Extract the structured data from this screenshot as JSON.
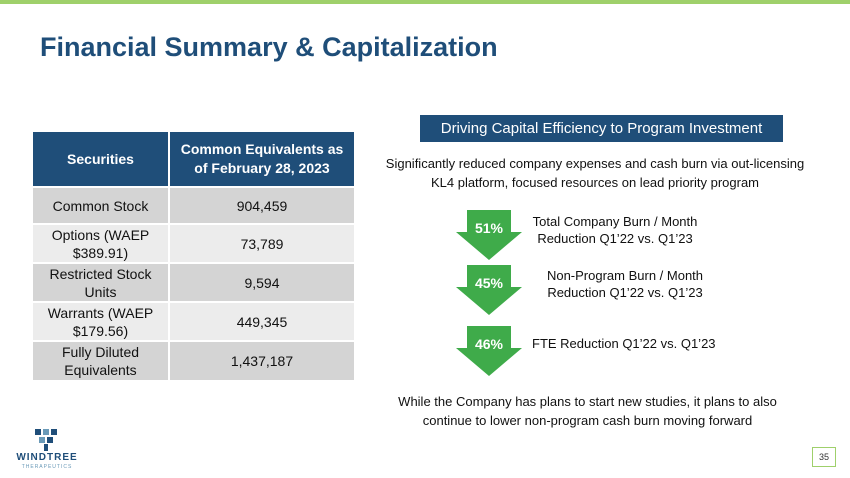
{
  "slide": {
    "title": "Financial Summary & Capitalization",
    "page_number": "35",
    "accent_color": "#9fd06b",
    "primary_color": "#1f4e79",
    "arrow_color": "#3fab4a"
  },
  "table": {
    "headers": [
      "Securities",
      "Common Equivalents as of February 28, 2023"
    ],
    "rows": [
      {
        "security": "Common Stock",
        "value": "904,459"
      },
      {
        "security": "Options (WAEP $389.91)",
        "value": "73,789"
      },
      {
        "security": "Restricted Stock Units",
        "value": "9,594"
      },
      {
        "security": "Warrants (WAEP $179.56)",
        "value": "449,345"
      },
      {
        "security": "Fully Diluted Equivalents",
        "value": "1,437,187"
      }
    ]
  },
  "right_panel": {
    "banner": "Driving Capital Efficiency to Program Investment",
    "intro": "Significantly reduced company expenses and cash burn via out-licensing KL4 platform, focused resources on lead priority program",
    "metrics": [
      {
        "percent": "51%",
        "label": "Total Company Burn / Month Reduction Q1’22 vs. Q1’23"
      },
      {
        "percent": "45%",
        "label": "Non-Program Burn / Month Reduction Q1’22 vs. Q1’23"
      },
      {
        "percent": "46%",
        "label": "FTE Reduction Q1’22 vs. Q1’23"
      }
    ],
    "closing": "While the Company has plans to start new studies, it plans to also continue to lower non-program cash burn moving forward"
  },
  "logo": {
    "name": "WINDTREE",
    "tagline": "THERAPEUTICS"
  }
}
